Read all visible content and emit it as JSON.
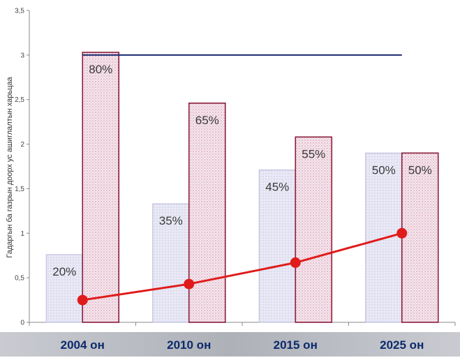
{
  "chart_data": {
    "type": "bar",
    "categories": [
      "2004 он",
      "2010 он",
      "2015 он",
      "2025 он"
    ],
    "ylabel": "Гадаргын ба газрын доорх ус ашиглалтын харьцаа",
    "ylim": [
      0,
      3.5
    ],
    "yticks": [
      "0",
      "0,5",
      "1",
      "1,5",
      "2",
      "2,5",
      "3",
      "3,5"
    ],
    "series": [
      {
        "type": "bar",
        "values": [
          0.76,
          1.33,
          1.71,
          1.9
        ],
        "labels": [
          "20%",
          "35%",
          "45%",
          "50%"
        ]
      },
      {
        "type": "bar",
        "values": [
          3.03,
          2.46,
          2.08,
          1.9
        ],
        "labels": [
          "80%",
          "65%",
          "55%",
          "50%"
        ]
      },
      {
        "type": "line",
        "values": [
          0.25,
          0.43,
          0.67,
          1.0
        ]
      },
      {
        "type": "hline",
        "value": 3.0
      }
    ],
    "grid": false,
    "colors": {
      "bar1_fill": "#e6e6f4",
      "bar1_edge": "#b8b8dc",
      "bar2_fill": "#f1e3ea",
      "bar2_edge": "#8a1f3c",
      "line": "#e01b1b",
      "hline": "#1b2a72",
      "footer_band": "#b9bbc2"
    }
  }
}
